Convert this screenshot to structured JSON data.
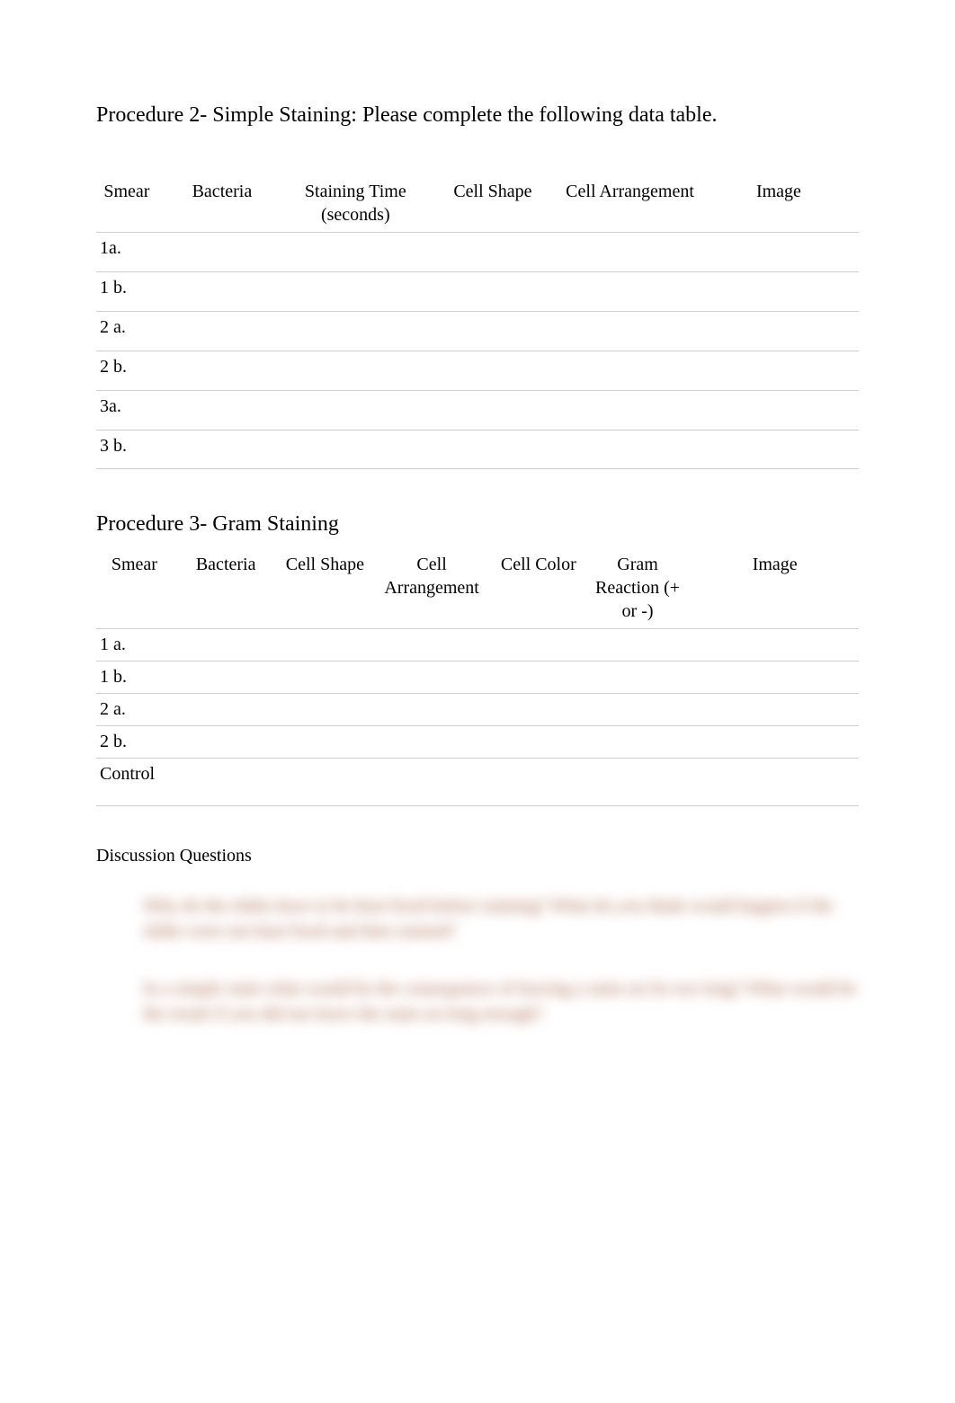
{
  "procedure2": {
    "heading": "Procedure 2- Simple Staining: Please complete the following data table.",
    "headers": {
      "c1": "Smear",
      "c2": "Bacteria",
      "c3": "Staining Time (seconds)",
      "c4": "Cell Shape",
      "c5": "Cell Arrangement",
      "c6": "Image"
    },
    "rows": [
      {
        "smear": "1a."
      },
      {
        "smear": "1 b."
      },
      {
        "smear": "2 a."
      },
      {
        "smear": "2 b."
      },
      {
        "smear": "3a."
      },
      {
        "smear": "3 b."
      }
    ]
  },
  "procedure3": {
    "heading": "Procedure 3- Gram Staining",
    "headers": {
      "c1": "Smear",
      "c2": "Bacteria",
      "c3": "Cell Shape",
      "c4": "Cell Arrangement",
      "c5": "Cell Color",
      "c6": "Gram Reaction (+ or -)",
      "c7": "Image"
    },
    "rows": [
      {
        "smear": "1 a."
      },
      {
        "smear": "1 b."
      },
      {
        "smear": "2 a."
      },
      {
        "smear": "2 b."
      },
      {
        "smear": "Control"
      }
    ]
  },
  "discussion": {
    "heading": "Discussion Questions",
    "q1": "Why do the slides have to be heat fixed before staining? What do you think would happen if the slides were not heat fixed and then stained?",
    "q2": "In a simple stain what would be the consequence of leaving a stain on for too long? What would be the result if you did not leave the stain on long enough?"
  },
  "colors": {
    "text": "#000000",
    "background": "#ffffff",
    "divider": "#cfcfcf",
    "blurred": "#a35a3a"
  },
  "typography": {
    "body_font": "Times New Roman",
    "heading_fontsize_pt": 18,
    "table_fontsize_pt": 15,
    "discussion_fontsize_pt": 15
  }
}
